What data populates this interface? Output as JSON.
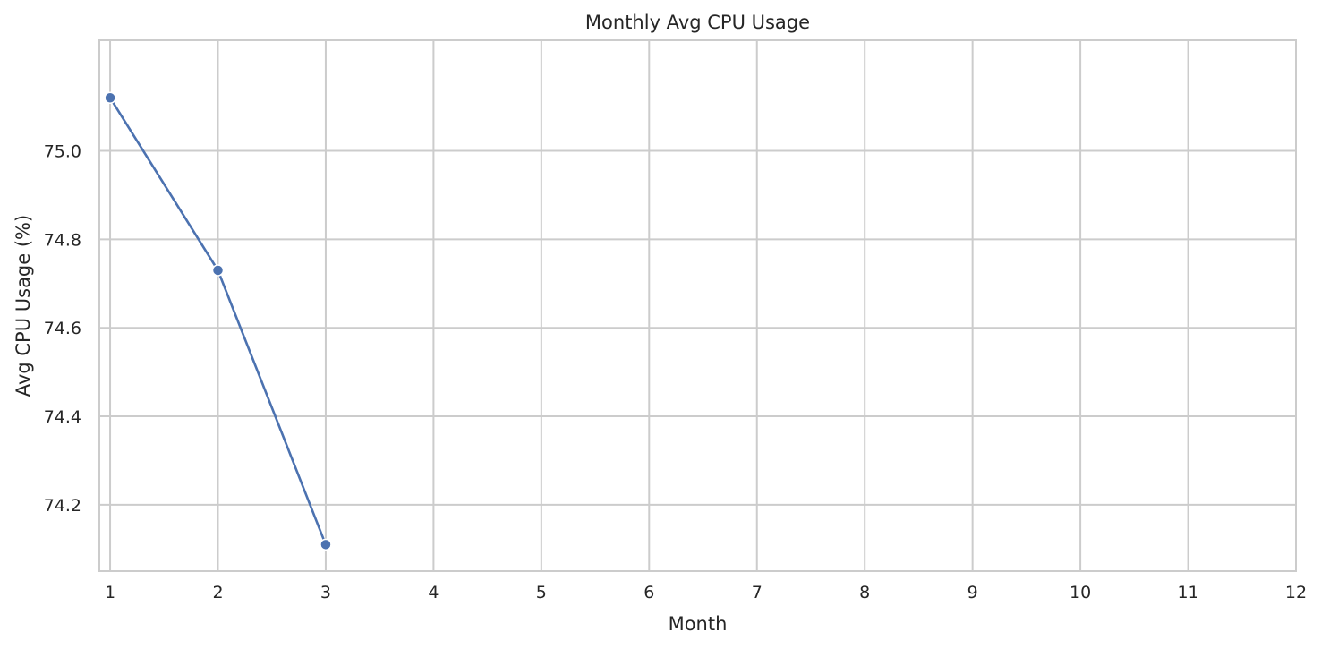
{
  "chart_data": {
    "type": "line",
    "title": "Monthly Avg CPU Usage",
    "xlabel": "Month",
    "ylabel": "Avg CPU Usage (%)",
    "x_ticks": [
      1,
      2,
      3,
      4,
      5,
      6,
      7,
      8,
      9,
      10,
      11,
      12
    ],
    "y_ticks": [
      74.2,
      74.4,
      74.6,
      74.8,
      75.0
    ],
    "xlim": [
      0.9,
      12
    ],
    "ylim": [
      74.05,
      75.25
    ],
    "grid": true,
    "series": [
      {
        "x": [
          1,
          2,
          3
        ],
        "values": [
          75.12,
          74.73,
          74.11
        ],
        "color": "#4c72b0",
        "marker": "circle"
      }
    ]
  }
}
